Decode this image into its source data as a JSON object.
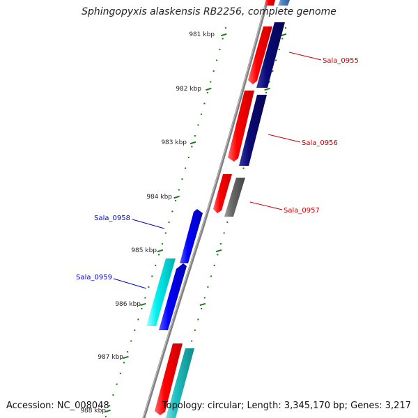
{
  "title": "Sphingopyxis alaskensis RB2256, complete genome",
  "footer": {
    "accession": "Accession: NC_008048",
    "summary": "Topology: circular; Length: 3,345,170 bp; Genes: 3,217"
  },
  "ticks": [
    {
      "label": "981 kbp"
    },
    {
      "label": "982 kbp"
    },
    {
      "label": "983 kbp"
    },
    {
      "label": "984 kbp"
    },
    {
      "label": "985 kbp"
    },
    {
      "label": "986 kbp"
    },
    {
      "label": "987 kbp"
    },
    {
      "label": "988 kbp"
    }
  ],
  "labels": [
    {
      "text": "Sala_0955",
      "color": "#cc0000"
    },
    {
      "text": "Sala_0956",
      "color": "#cc0000"
    },
    {
      "text": "Sala_0957",
      "color": "#cc0000"
    },
    {
      "text": "Sala_0958",
      "color": "#0000cc"
    },
    {
      "text": "Sala_0959",
      "color": "#0000cc"
    }
  ],
  "colors": {
    "forward_gene": "#ff0000",
    "forward_cds": "#0a0a78",
    "reverse_gene": "#0000ff",
    "reverse_cds": "#00e5e5",
    "pseudo": "#666666",
    "teal": "#20c0c0",
    "steel": "#4f86c6",
    "tick": "#1a7a1a",
    "backbone": "#808080"
  }
}
